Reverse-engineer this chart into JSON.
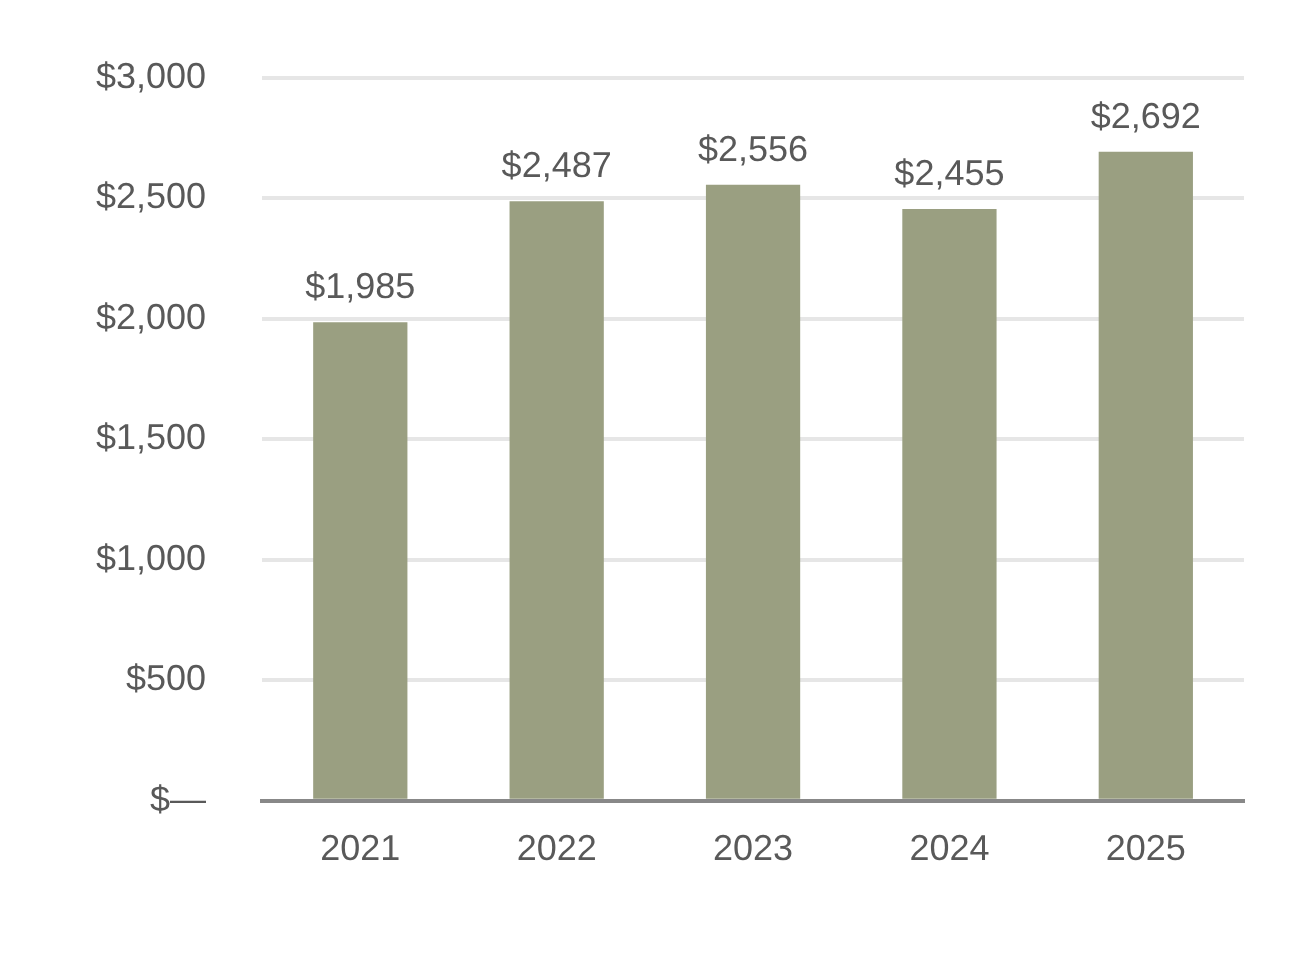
{
  "chart_data": {
    "type": "bar",
    "categories": [
      "2021",
      "2022",
      "2023",
      "2024",
      "2025"
    ],
    "values": [
      1985,
      2487,
      2556,
      2455,
      2692
    ],
    "value_labels": [
      "$1,985",
      "$2,487",
      "$2,556",
      "$2,455",
      "$2,692"
    ],
    "color": "#9a9f81",
    "ylim": [
      0,
      3000
    ],
    "yticks": [
      {
        "value": 0,
        "label": "$—"
      },
      {
        "value": 500,
        "label": "$500"
      },
      {
        "value": 1000,
        "label": "$1,000"
      },
      {
        "value": 1500,
        "label": "$1,500"
      },
      {
        "value": 2000,
        "label": "$2,000"
      },
      {
        "value": 2500,
        "label": "$2,500"
      },
      {
        "value": 3000,
        "label": "$3,000"
      }
    ],
    "grid": "y",
    "legend": false
  }
}
